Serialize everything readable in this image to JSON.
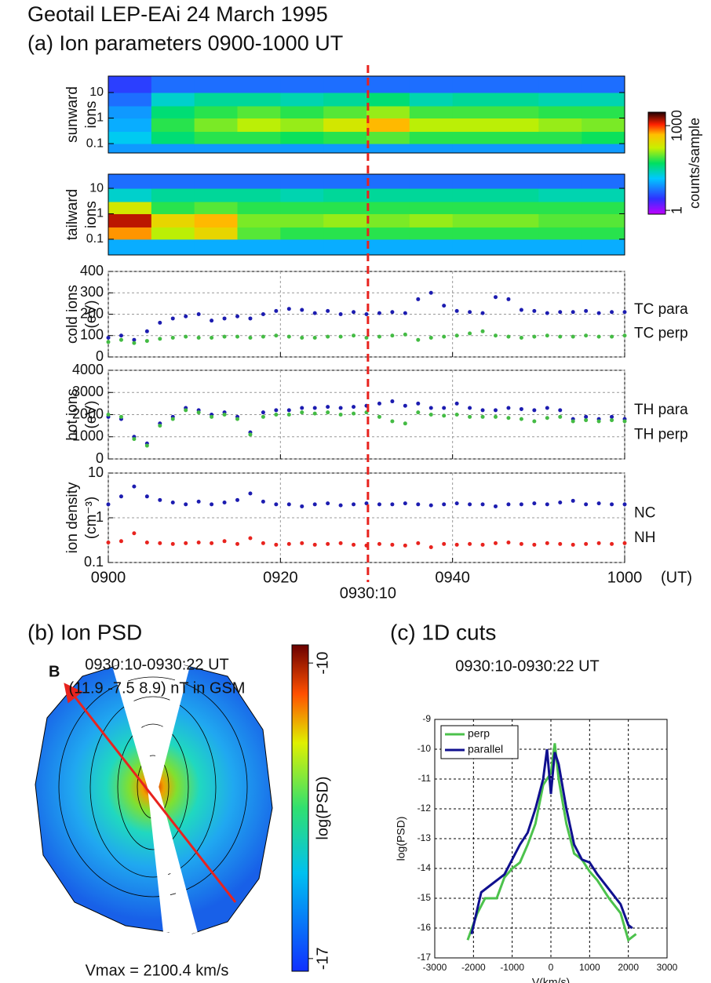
{
  "header": {
    "title": "Geotail LEP-EAi    24 March 1995",
    "subtitle": "(a) Ion parameters  0900-1000 UT"
  },
  "chart_data": [
    {
      "type": "heatmap",
      "ylabel": [
        "sunward",
        "ions"
      ],
      "ylog": true,
      "ylim": [
        0.043,
        44
      ],
      "yticks": [
        0.1,
        1,
        10
      ],
      "x_bins": [
        0,
        5,
        10,
        15,
        20,
        25,
        30,
        35,
        40,
        45,
        50,
        55,
        60
      ],
      "y_bins": [
        0.043,
        0.1,
        0.3,
        1,
        3,
        10,
        44
      ],
      "values": [
        [
          8,
          8,
          8,
          8,
          8,
          8,
          8,
          8,
          8,
          8,
          8,
          8
        ],
        [
          15,
          40,
          60,
          60,
          50,
          60,
          80,
          60,
          60,
          60,
          60,
          50
        ],
        [
          10,
          60,
          100,
          150,
          120,
          200,
          500,
          150,
          150,
          150,
          120,
          100
        ],
        [
          8,
          40,
          60,
          80,
          60,
          80,
          120,
          70,
          70,
          70,
          60,
          60
        ],
        [
          5,
          20,
          30,
          30,
          25,
          30,
          40,
          25,
          30,
          30,
          25,
          25
        ],
        [
          3,
          5,
          5,
          5,
          5,
          5,
          5,
          5,
          5,
          5,
          5,
          5
        ]
      ],
      "colorbar": {
        "label": "counts/sample",
        "log": true,
        "lim": [
          0.73,
          3000
        ],
        "ticks": [
          1,
          1000
        ]
      }
    },
    {
      "type": "heatmap",
      "ylabel": [
        "tailward",
        "ions"
      ],
      "ylog": true,
      "ylim": [
        0.024,
        36
      ],
      "yticks": [
        0.1,
        1,
        10
      ],
      "x_bins": [
        0,
        5,
        10,
        15,
        20,
        25,
        30,
        35,
        40,
        45,
        50,
        55,
        60
      ],
      "y_bins": [
        0.024,
        0.1,
        0.3,
        1,
        3,
        10,
        36
      ],
      "values": [
        [
          10,
          10,
          10,
          10,
          10,
          10,
          10,
          10,
          10,
          10,
          10,
          10
        ],
        [
          600,
          150,
          300,
          80,
          60,
          60,
          60,
          60,
          60,
          60,
          60,
          60
        ],
        [
          1500,
          300,
          500,
          100,
          100,
          120,
          100,
          120,
          100,
          100,
          80,
          80
        ],
        [
          200,
          60,
          80,
          60,
          60,
          60,
          60,
          60,
          60,
          60,
          60,
          60
        ],
        [
          20,
          30,
          30,
          30,
          25,
          30,
          30,
          30,
          30,
          30,
          25,
          25
        ],
        [
          5,
          5,
          5,
          5,
          5,
          5,
          5,
          5,
          5,
          5,
          5,
          5
        ]
      ]
    },
    {
      "type": "scatter",
      "ylabel": [
        "cold ions",
        "(eV)"
      ],
      "ylim": [
        0,
        400
      ],
      "yticks": [
        0,
        100,
        200,
        300,
        400
      ],
      "grid": true,
      "x": [
        0,
        1.5,
        3,
        4.5,
        6,
        7.5,
        9,
        10.5,
        12,
        13.5,
        15,
        16.5,
        18,
        19.5,
        21,
        22.5,
        24,
        25.5,
        27,
        28.5,
        30,
        31.5,
        33,
        34.5,
        36,
        37.5,
        39,
        40.5,
        42,
        43.5,
        45,
        46.5,
        48,
        49.5,
        51,
        52.5,
        54,
        55.5,
        57,
        58.5,
        60
      ],
      "series": [
        {
          "name": "TC para",
          "color": "#1c1cb0",
          "values": [
            90,
            100,
            80,
            120,
            160,
            180,
            190,
            200,
            170,
            180,
            190,
            180,
            200,
            215,
            225,
            220,
            205,
            215,
            200,
            210,
            200,
            205,
            210,
            205,
            270,
            300,
            240,
            215,
            210,
            205,
            280,
            270,
            220,
            215,
            205,
            210,
            210,
            215,
            205,
            210,
            210
          ]
        },
        {
          "name": "TC perp",
          "color": "#44bb44",
          "values": [
            70,
            80,
            65,
            75,
            85,
            90,
            95,
            90,
            90,
            95,
            95,
            90,
            95,
            100,
            95,
            90,
            90,
            95,
            95,
            100,
            90,
            95,
            100,
            105,
            80,
            90,
            95,
            100,
            110,
            120,
            100,
            95,
            90,
            95,
            100,
            95,
            95,
            100,
            95,
            95,
            100
          ]
        }
      ]
    },
    {
      "type": "scatter",
      "ylabel": [
        "hot ions",
        "(eV)"
      ],
      "ylim": [
        0,
        4000
      ],
      "yticks": [
        0,
        1000,
        2000,
        3000,
        4000
      ],
      "grid": true,
      "x": [
        0,
        1.5,
        3,
        4.5,
        6,
        7.5,
        9,
        10.5,
        12,
        13.5,
        15,
        16.5,
        18,
        19.5,
        21,
        22.5,
        24,
        25.5,
        27,
        28.5,
        30,
        31.5,
        33,
        34.5,
        36,
        37.5,
        39,
        40.5,
        42,
        43.5,
        45,
        46.5,
        48,
        49.5,
        51,
        52.5,
        54,
        55.5,
        57,
        58.5,
        60
      ],
      "series": [
        {
          "name": "TH para",
          "color": "#1c1cb0",
          "values": [
            1900,
            1800,
            1000,
            700,
            1600,
            1900,
            2300,
            2200,
            2000,
            2100,
            1900,
            1200,
            2100,
            2200,
            2200,
            2300,
            2300,
            2350,
            2300,
            2350,
            2400,
            2500,
            2600,
            2400,
            2500,
            2300,
            2300,
            2500,
            2300,
            2200,
            2200,
            2300,
            2250,
            2200,
            2300,
            2200,
            1800,
            1900,
            1800,
            1900,
            1800
          ]
        },
        {
          "name": "TH perp",
          "color": "#44bb44",
          "values": [
            2000,
            1900,
            900,
            600,
            1500,
            1800,
            2200,
            2100,
            1900,
            2000,
            1800,
            1100,
            1900,
            2000,
            2000,
            2100,
            2050,
            2100,
            2000,
            2050,
            2100,
            1900,
            1700,
            1600,
            2100,
            2000,
            1950,
            2000,
            1900,
            1900,
            1900,
            1850,
            1800,
            1700,
            1850,
            1900,
            1700,
            1750,
            1700,
            1750,
            1700
          ]
        }
      ]
    },
    {
      "type": "scatter",
      "ylabel": [
        "ion density",
        "(cm⁻³)"
      ],
      "ylog": true,
      "ylim": [
        0.1,
        10
      ],
      "yticks": [
        0.1,
        1,
        10
      ],
      "grid": true,
      "xlim": [
        0,
        60
      ],
      "xticks": [
        {
          "value": 0,
          "label": "0900"
        },
        {
          "value": 20,
          "label": "0920"
        },
        {
          "value": 40,
          "label": "0940"
        },
        {
          "value": 60,
          "label": "1000"
        }
      ],
      "xunit": "(UT)",
      "marker": {
        "value": 30.17,
        "label": "0930:10",
        "color": "#e8231e"
      },
      "x": [
        0,
        1.5,
        3,
        4.5,
        6,
        7.5,
        9,
        10.5,
        12,
        13.5,
        15,
        16.5,
        18,
        19.5,
        21,
        22.5,
        24,
        25.5,
        27,
        28.5,
        30,
        31.5,
        33,
        34.5,
        36,
        37.5,
        39,
        40.5,
        42,
        43.5,
        45,
        46.5,
        48,
        49.5,
        51,
        52.5,
        54,
        55.5,
        57,
        58.5,
        60
      ],
      "series": [
        {
          "name": "NC",
          "color": "#1c1cb0",
          "values": [
            2,
            3,
            5,
            3,
            2.5,
            2.2,
            2,
            2.3,
            2,
            2.2,
            2.5,
            3.5,
            2.3,
            2,
            2,
            1.8,
            2,
            2.1,
            1.9,
            2,
            2.1,
            2,
            2,
            2.1,
            2,
            1.9,
            2,
            2.1,
            2,
            2,
            1.8,
            2,
            2,
            2.1,
            2,
            2.2,
            2.4,
            2,
            2.1,
            2,
            2
          ]
        },
        {
          "name": "NH",
          "color": "#e8231e",
          "values": [
            0.28,
            0.3,
            0.45,
            0.28,
            0.27,
            0.26,
            0.27,
            0.28,
            0.27,
            0.3,
            0.26,
            0.35,
            0.27,
            0.25,
            0.26,
            0.27,
            0.25,
            0.26,
            0.27,
            0.25,
            0.24,
            0.26,
            0.25,
            0.24,
            0.27,
            0.22,
            0.26,
            0.25,
            0.26,
            0.25,
            0.27,
            0.28,
            0.26,
            0.25,
            0.27,
            0.26,
            0.25,
            0.26,
            0.27,
            0.26,
            0.27
          ]
        }
      ]
    },
    {
      "type": "psd",
      "title": "(b) Ion PSD",
      "subtitle": [
        "0930:10-0930:22 UT",
        "(11.9 -7.5 8.9) nT in GSM"
      ],
      "field_label": "B",
      "note": "Vmax = 2100.4 km/s",
      "colorbar": {
        "label": "log(PSD)",
        "lim": [
          -17.3,
          -9.57
        ],
        "ticks": [
          -17,
          -10
        ]
      }
    },
    {
      "type": "line",
      "title": "(c) 1D cuts",
      "subtitle": "0930:10-0930:22 UT",
      "xlabel": "V(km/s)",
      "ylabel": "log(PSD)",
      "xlim": [
        -3000,
        3000
      ],
      "xticks": [
        -3000,
        -2000,
        -1000,
        0,
        1000,
        2000,
        3000
      ],
      "ylim": [
        -17,
        -9
      ],
      "yticks": [
        -17,
        -16,
        -15,
        -14,
        -13,
        -12,
        -11,
        -10,
        -9
      ],
      "grid": true,
      "legend": "upper left",
      "series": [
        {
          "name": "perp",
          "color": "#4cc24c",
          "x": [
            -2150,
            -1900,
            -1700,
            -1400,
            -1200,
            -1000,
            -800,
            -600,
            -400,
            -200,
            0,
            100,
            200,
            400,
            600,
            800,
            1000,
            1200,
            1500,
            1800,
            2000,
            2200
          ],
          "values": [
            -16.4,
            -15.5,
            -15,
            -15,
            -14.3,
            -14,
            -13.8,
            -13.2,
            -12.5,
            -11.2,
            -10.8,
            -9.8,
            -11,
            -12.5,
            -13.5,
            -13.7,
            -14.1,
            -14.4,
            -15,
            -15.5,
            -16.4,
            -16.2
          ]
        },
        {
          "name": "parallel",
          "color": "#10108f",
          "x": [
            -2050,
            -1800,
            -1500,
            -1200,
            -1000,
            -800,
            -600,
            -400,
            -200,
            -100,
            0,
            100,
            200,
            400,
            600,
            800,
            1000,
            1200,
            1500,
            1800,
            2000,
            2100
          ],
          "values": [
            -16.2,
            -14.8,
            -14.5,
            -14.2,
            -13.7,
            -13.2,
            -12.8,
            -12,
            -11,
            -10,
            -11.5,
            -10.1,
            -10.5,
            -12,
            -13.2,
            -13.7,
            -13.8,
            -14.2,
            -14.7,
            -15.2,
            -15.9,
            -16
          ]
        }
      ]
    }
  ]
}
